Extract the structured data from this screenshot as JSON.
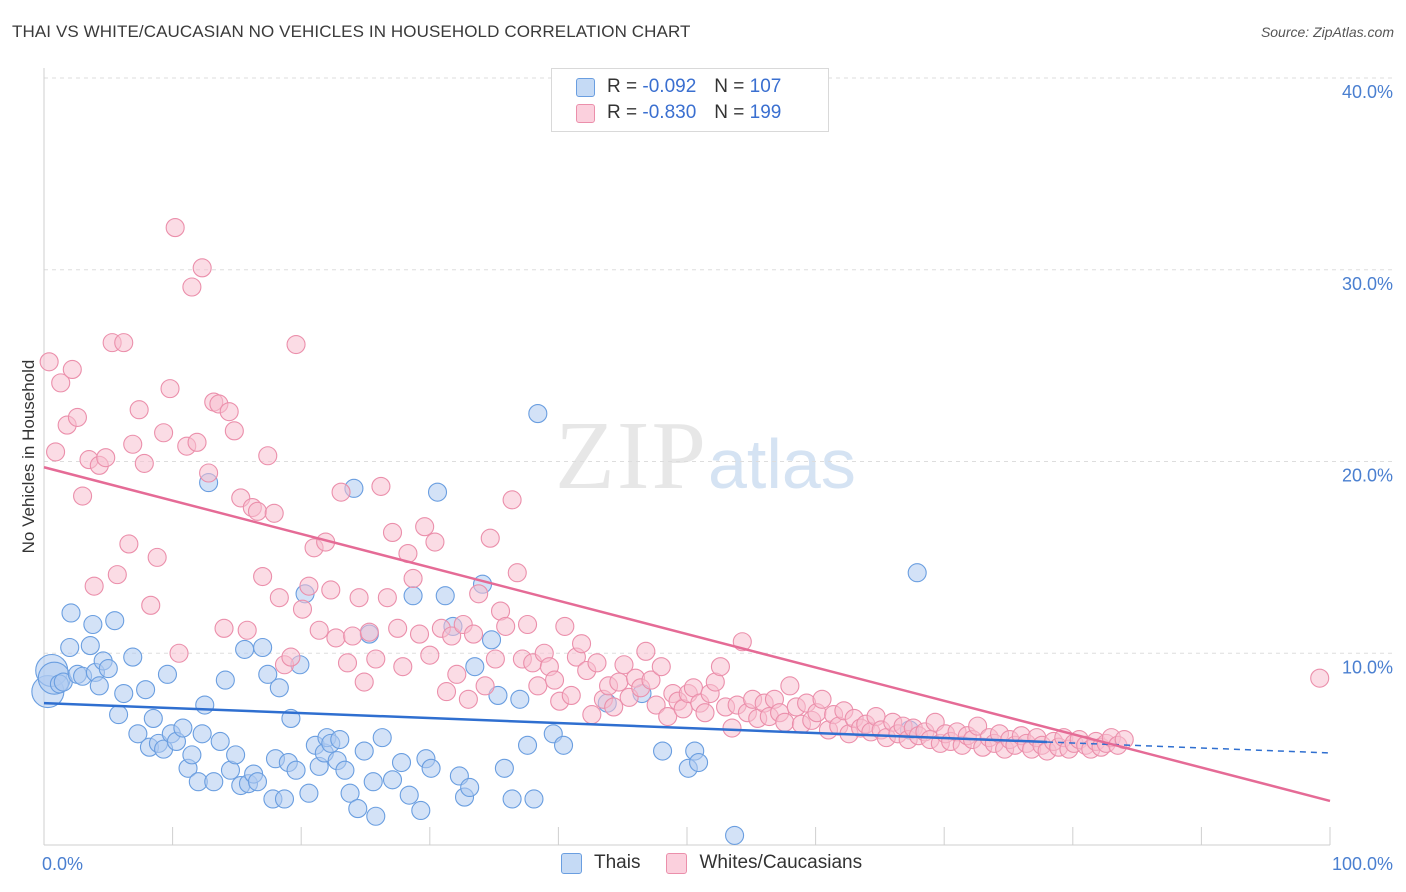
{
  "title": "THAI VS WHITE/CAUCASIAN NO VEHICLES IN HOUSEHOLD CORRELATION CHART",
  "source": "Source: ZipAtlas.com",
  "watermark": {
    "zip": "ZIP",
    "atlas": "atlas"
  },
  "legend": {
    "rows": [
      {
        "r_label": "R = ",
        "r_value": "-0.092",
        "n_label": "N = ",
        "n_value": "107"
      },
      {
        "r_label": "R = ",
        "r_value": "-0.830",
        "n_label": "N = ",
        "n_value": "199"
      }
    ]
  },
  "bottom_legend": [
    "Thais",
    "Whites/Caucasians"
  ],
  "colors": {
    "thais_fill": "#aecbf0",
    "thais_stroke": "#6a9ee0",
    "thais_line": "#2f6fd0",
    "whites_fill": "#f8bfd0",
    "whites_stroke": "#eb8fab",
    "whites_line": "#e56b96",
    "tick_text": "#4a7fd0",
    "grid": "#dddddd"
  },
  "chart_data": {
    "type": "scatter",
    "ylabel": "No Vehicles in Household",
    "xlim": [
      0,
      100
    ],
    "ylim": [
      0,
      40
    ],
    "x_tick_labels": [
      "0.0%",
      "100.0%"
    ],
    "y_ticks": [
      10,
      20,
      30,
      40
    ],
    "y_tick_labels": [
      "10.0%",
      "20.0%",
      "30.0%",
      "40.0%"
    ],
    "grid": true,
    "series": [
      {
        "name": "Thais",
        "r": -0.092,
        "n": 107,
        "trend": {
          "x": [
            0,
            100
          ],
          "y": [
            7.4,
            4.8
          ],
          "solid_until": 78
        },
        "points": [
          [
            0.3,
            8.0
          ],
          [
            0.6,
            9.1
          ],
          [
            0.8,
            8.7
          ],
          [
            1.2,
            8.4
          ],
          [
            1.5,
            8.5
          ],
          [
            2.0,
            10.3
          ],
          [
            2.1,
            12.1
          ],
          [
            2.6,
            8.9
          ],
          [
            3.0,
            8.8
          ],
          [
            3.6,
            10.4
          ],
          [
            3.8,
            11.5
          ],
          [
            4.0,
            9.0
          ],
          [
            4.3,
            8.3
          ],
          [
            4.6,
            9.6
          ],
          [
            5.0,
            9.2
          ],
          [
            5.5,
            11.7
          ],
          [
            5.8,
            6.8
          ],
          [
            6.2,
            7.9
          ],
          [
            6.9,
            9.8
          ],
          [
            7.3,
            5.8
          ],
          [
            7.9,
            8.1
          ],
          [
            8.2,
            5.1
          ],
          [
            8.5,
            6.6
          ],
          [
            8.9,
            5.3
          ],
          [
            9.3,
            5.0
          ],
          [
            9.6,
            8.9
          ],
          [
            9.9,
            5.8
          ],
          [
            10.3,
            5.4
          ],
          [
            10.8,
            6.1
          ],
          [
            11.2,
            4.0
          ],
          [
            11.5,
            4.7
          ],
          [
            12.0,
            3.3
          ],
          [
            12.3,
            5.8
          ],
          [
            12.5,
            7.3
          ],
          [
            12.8,
            18.9
          ],
          [
            13.2,
            3.3
          ],
          [
            13.7,
            5.4
          ],
          [
            14.1,
            8.6
          ],
          [
            14.5,
            3.9
          ],
          [
            14.9,
            4.7
          ],
          [
            15.3,
            3.1
          ],
          [
            15.6,
            10.2
          ],
          [
            15.9,
            3.2
          ],
          [
            16.3,
            3.7
          ],
          [
            16.6,
            3.3
          ],
          [
            17.0,
            10.3
          ],
          [
            17.4,
            8.9
          ],
          [
            17.8,
            2.4
          ],
          [
            18.0,
            4.5
          ],
          [
            18.3,
            8.2
          ],
          [
            18.7,
            2.4
          ],
          [
            19.0,
            4.3
          ],
          [
            19.2,
            6.6
          ],
          [
            19.6,
            3.9
          ],
          [
            19.9,
            9.4
          ],
          [
            20.3,
            13.1
          ],
          [
            20.6,
            2.7
          ],
          [
            21.1,
            5.2
          ],
          [
            21.4,
            4.1
          ],
          [
            21.8,
            4.8
          ],
          [
            22.0,
            5.6
          ],
          [
            22.3,
            5.3
          ],
          [
            22.8,
            4.4
          ],
          [
            23.0,
            5.5
          ],
          [
            23.4,
            3.9
          ],
          [
            23.8,
            2.7
          ],
          [
            24.1,
            18.6
          ],
          [
            24.4,
            1.9
          ],
          [
            24.9,
            4.9
          ],
          [
            25.3,
            11.0
          ],
          [
            25.6,
            3.3
          ],
          [
            25.8,
            1.5
          ],
          [
            26.3,
            5.6
          ],
          [
            27.1,
            3.4
          ],
          [
            27.8,
            4.3
          ],
          [
            28.4,
            2.6
          ],
          [
            28.7,
            13.0
          ],
          [
            29.3,
            1.8
          ],
          [
            29.7,
            4.5
          ],
          [
            30.1,
            4.0
          ],
          [
            30.6,
            18.4
          ],
          [
            31.2,
            13.0
          ],
          [
            31.8,
            11.4
          ],
          [
            32.3,
            3.6
          ],
          [
            32.7,
            2.5
          ],
          [
            33.1,
            3.0
          ],
          [
            33.5,
            9.3
          ],
          [
            34.1,
            13.6
          ],
          [
            34.8,
            10.7
          ],
          [
            35.3,
            7.8
          ],
          [
            35.8,
            4.0
          ],
          [
            36.4,
            2.4
          ],
          [
            37.0,
            7.6
          ],
          [
            37.6,
            5.2
          ],
          [
            38.1,
            2.4
          ],
          [
            38.4,
            22.5
          ],
          [
            39.6,
            5.8
          ],
          [
            40.4,
            5.2
          ],
          [
            43.8,
            7.4
          ],
          [
            46.5,
            7.9
          ],
          [
            48.1,
            4.9
          ],
          [
            50.1,
            4.0
          ],
          [
            50.6,
            4.9
          ],
          [
            50.9,
            4.3
          ],
          [
            53.7,
            0.5
          ],
          [
            67.3,
            6.0
          ],
          [
            67.9,
            14.2
          ]
        ]
      },
      {
        "name": "Whites/Caucasians",
        "r": -0.83,
        "n": 199,
        "trend": {
          "x": [
            0,
            100
          ],
          "y": [
            19.7,
            2.3
          ]
        },
        "points": [
          [
            0.4,
            25.2
          ],
          [
            0.9,
            20.5
          ],
          [
            1.3,
            24.1
          ],
          [
            1.8,
            21.9
          ],
          [
            2.2,
            24.8
          ],
          [
            2.6,
            22.3
          ],
          [
            3.0,
            18.2
          ],
          [
            3.5,
            20.1
          ],
          [
            3.9,
            13.5
          ],
          [
            4.3,
            19.8
          ],
          [
            4.8,
            20.2
          ],
          [
            5.3,
            26.2
          ],
          [
            5.7,
            14.1
          ],
          [
            6.2,
            26.2
          ],
          [
            6.6,
            15.7
          ],
          [
            6.9,
            20.9
          ],
          [
            7.4,
            22.7
          ],
          [
            7.8,
            19.9
          ],
          [
            8.3,
            12.5
          ],
          [
            8.8,
            15.0
          ],
          [
            9.3,
            21.5
          ],
          [
            9.8,
            23.8
          ],
          [
            10.2,
            32.2
          ],
          [
            10.5,
            10.0
          ],
          [
            11.1,
            20.8
          ],
          [
            11.5,
            29.1
          ],
          [
            11.9,
            21.0
          ],
          [
            12.3,
            30.1
          ],
          [
            12.8,
            19.4
          ],
          [
            13.2,
            23.1
          ],
          [
            13.6,
            23.0
          ],
          [
            14.0,
            11.3
          ],
          [
            14.4,
            22.6
          ],
          [
            14.8,
            21.6
          ],
          [
            15.3,
            18.1
          ],
          [
            15.8,
            11.2
          ],
          [
            16.2,
            17.6
          ],
          [
            16.6,
            17.4
          ],
          [
            17.0,
            14.0
          ],
          [
            17.4,
            20.3
          ],
          [
            17.9,
            17.3
          ],
          [
            18.3,
            12.9
          ],
          [
            18.7,
            9.4
          ],
          [
            19.2,
            9.8
          ],
          [
            19.6,
            26.1
          ],
          [
            20.1,
            12.3
          ],
          [
            20.6,
            13.5
          ],
          [
            21.0,
            15.5
          ],
          [
            21.4,
            11.2
          ],
          [
            21.9,
            15.8
          ],
          [
            22.3,
            13.3
          ],
          [
            22.7,
            10.8
          ],
          [
            23.1,
            18.4
          ],
          [
            23.6,
            9.5
          ],
          [
            24.0,
            10.9
          ],
          [
            24.5,
            12.9
          ],
          [
            24.9,
            8.5
          ],
          [
            25.3,
            11.1
          ],
          [
            25.8,
            9.7
          ],
          [
            26.2,
            18.7
          ],
          [
            26.7,
            12.9
          ],
          [
            27.1,
            16.3
          ],
          [
            27.5,
            11.3
          ],
          [
            27.9,
            9.3
          ],
          [
            28.3,
            15.2
          ],
          [
            28.7,
            13.9
          ],
          [
            29.2,
            11.0
          ],
          [
            29.6,
            16.6
          ],
          [
            30.0,
            9.9
          ],
          [
            30.4,
            15.8
          ],
          [
            30.9,
            11.3
          ],
          [
            31.3,
            8.0
          ],
          [
            31.7,
            10.9
          ],
          [
            32.1,
            8.9
          ],
          [
            32.6,
            11.5
          ],
          [
            33.0,
            7.6
          ],
          [
            33.4,
            11.0
          ],
          [
            33.8,
            13.1
          ],
          [
            34.3,
            8.3
          ],
          [
            34.7,
            16.0
          ],
          [
            35.1,
            9.7
          ],
          [
            35.5,
            12.2
          ],
          [
            35.9,
            11.4
          ],
          [
            36.4,
            18.0
          ],
          [
            36.8,
            14.2
          ],
          [
            37.2,
            9.7
          ],
          [
            37.6,
            11.5
          ],
          [
            38.0,
            9.5
          ],
          [
            38.4,
            8.3
          ],
          [
            38.9,
            10.0
          ],
          [
            39.3,
            9.3
          ],
          [
            39.7,
            8.6
          ],
          [
            40.1,
            7.5
          ],
          [
            40.5,
            11.4
          ],
          [
            41.0,
            7.8
          ],
          [
            41.4,
            9.8
          ],
          [
            41.8,
            10.5
          ],
          [
            42.2,
            9.1
          ],
          [
            42.6,
            6.8
          ],
          [
            43.0,
            9.5
          ],
          [
            43.5,
            7.6
          ],
          [
            43.9,
            8.3
          ],
          [
            44.3,
            7.2
          ],
          [
            44.7,
            8.5
          ],
          [
            45.1,
            9.4
          ],
          [
            45.5,
            7.7
          ],
          [
            46.0,
            8.7
          ],
          [
            46.4,
            8.2
          ],
          [
            46.8,
            10.1
          ],
          [
            47.2,
            8.6
          ],
          [
            47.6,
            7.3
          ],
          [
            48.0,
            9.3
          ],
          [
            48.5,
            6.7
          ],
          [
            48.9,
            7.9
          ],
          [
            49.3,
            7.5
          ],
          [
            49.7,
            7.1
          ],
          [
            50.1,
            7.9
          ],
          [
            50.5,
            8.2
          ],
          [
            51.0,
            7.4
          ],
          [
            51.4,
            6.9
          ],
          [
            51.8,
            7.9
          ],
          [
            52.2,
            8.5
          ],
          [
            52.6,
            9.3
          ],
          [
            53.0,
            7.2
          ],
          [
            53.5,
            6.1
          ],
          [
            53.9,
            7.3
          ],
          [
            54.3,
            10.6
          ],
          [
            54.7,
            6.9
          ],
          [
            55.1,
            7.6
          ],
          [
            55.5,
            6.6
          ],
          [
            56.0,
            7.4
          ],
          [
            56.4,
            6.7
          ],
          [
            56.8,
            7.6
          ],
          [
            57.2,
            6.9
          ],
          [
            57.6,
            6.4
          ],
          [
            58.0,
            8.3
          ],
          [
            58.5,
            7.2
          ],
          [
            58.9,
            6.3
          ],
          [
            59.3,
            7.4
          ],
          [
            59.7,
            6.5
          ],
          [
            60.1,
            6.9
          ],
          [
            60.5,
            7.6
          ],
          [
            61.0,
            6.0
          ],
          [
            61.4,
            6.8
          ],
          [
            61.8,
            6.2
          ],
          [
            62.2,
            7.0
          ],
          [
            62.6,
            5.8
          ],
          [
            63.0,
            6.6
          ],
          [
            63.5,
            6.1
          ],
          [
            63.9,
            6.3
          ],
          [
            64.3,
            5.9
          ],
          [
            64.7,
            6.7
          ],
          [
            65.1,
            6.0
          ],
          [
            65.5,
            5.6
          ],
          [
            66.0,
            6.4
          ],
          [
            66.4,
            5.8
          ],
          [
            66.8,
            6.2
          ],
          [
            67.2,
            5.5
          ],
          [
            67.6,
            6.1
          ],
          [
            68.0,
            5.7
          ],
          [
            68.5,
            5.9
          ],
          [
            68.9,
            5.5
          ],
          [
            69.3,
            6.4
          ],
          [
            69.7,
            5.3
          ],
          [
            70.1,
            5.8
          ],
          [
            70.5,
            5.4
          ],
          [
            71.0,
            5.9
          ],
          [
            71.4,
            5.2
          ],
          [
            71.8,
            5.7
          ],
          [
            72.2,
            5.5
          ],
          [
            72.6,
            6.2
          ],
          [
            73.0,
            5.1
          ],
          [
            73.5,
            5.6
          ],
          [
            73.9,
            5.3
          ],
          [
            74.3,
            5.8
          ],
          [
            74.7,
            5.0
          ],
          [
            75.1,
            5.5
          ],
          [
            75.5,
            5.2
          ],
          [
            76.0,
            5.7
          ],
          [
            76.4,
            5.3
          ],
          [
            76.8,
            5.0
          ],
          [
            77.2,
            5.6
          ],
          [
            77.6,
            5.2
          ],
          [
            78.0,
            4.9
          ],
          [
            78.5,
            5.4
          ],
          [
            78.9,
            5.1
          ],
          [
            79.3,
            5.6
          ],
          [
            79.7,
            5.0
          ],
          [
            80.1,
            5.3
          ],
          [
            80.5,
            5.5
          ],
          [
            81.0,
            5.2
          ],
          [
            81.4,
            5.0
          ],
          [
            81.8,
            5.4
          ],
          [
            82.2,
            5.1
          ],
          [
            82.6,
            5.3
          ],
          [
            83.0,
            5.6
          ],
          [
            83.5,
            5.2
          ],
          [
            84.0,
            5.5
          ],
          [
            99.2,
            8.7
          ]
        ]
      }
    ]
  }
}
